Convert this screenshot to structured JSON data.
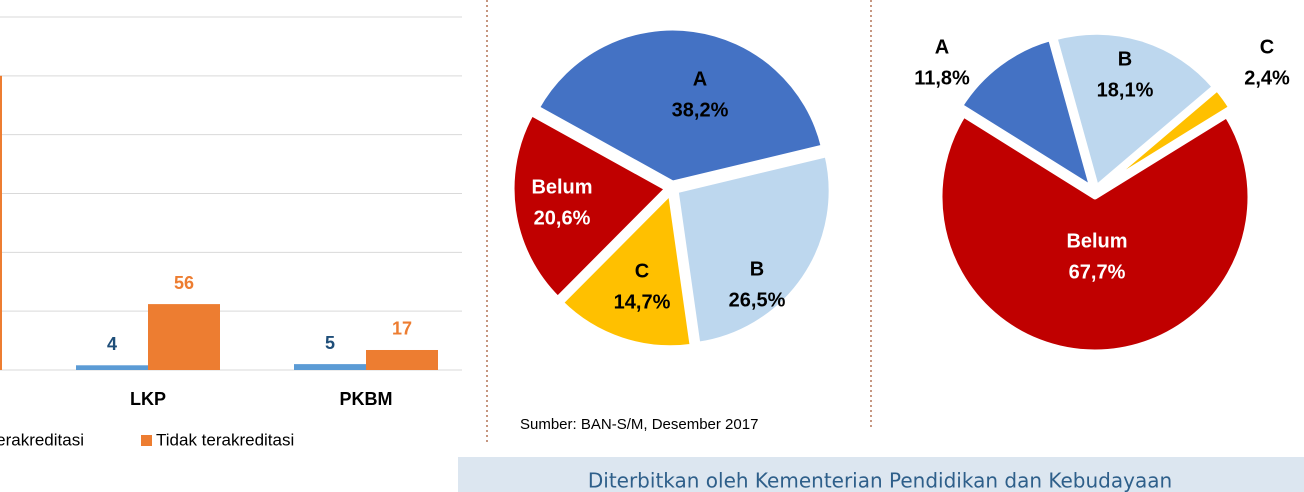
{
  "chart_data": [
    {
      "type": "bar",
      "categories": [
        null,
        "LKP",
        "PKBM"
      ],
      "series": [
        {
          "name": "Terakreditasi",
          "color": "#5B9BD5",
          "values": [
            null,
            4,
            5
          ]
        },
        {
          "name": "Tidak terakreditasi",
          "color": "#ED7D31",
          "values": [
            250,
            56,
            17
          ]
        }
      ],
      "ylim": [
        0,
        300
      ],
      "yticks": [
        0,
        50,
        100,
        150,
        200,
        250,
        300
      ],
      "grid": true
    },
    {
      "type": "pie",
      "categories": [
        "A",
        "B",
        "C",
        "Belum"
      ],
      "values": [
        38.2,
        26.5,
        14.7,
        20.6
      ],
      "value_labels": [
        "38,2%",
        "26,5%",
        "14,7%",
        "20,6%"
      ],
      "colors": [
        "#4472C4",
        "#BDD7EE",
        "#FFC000",
        "#C00000"
      ]
    },
    {
      "type": "pie",
      "categories": [
        "A",
        "B",
        "C",
        "Belum"
      ],
      "values": [
        11.8,
        18.1,
        2.4,
        67.7
      ],
      "value_labels": [
        "11,8%",
        "18,1%",
        "2,4%",
        "67,7%"
      ],
      "colors": [
        "#4472C4",
        "#BDD7EE",
        "#FFC000",
        "#C00000"
      ]
    }
  ],
  "source": "Sumber: BAN-S/M, Desember 2017",
  "footer": "Diterbitkan oleh Kementerian Pendidikan dan Kebudayaan"
}
